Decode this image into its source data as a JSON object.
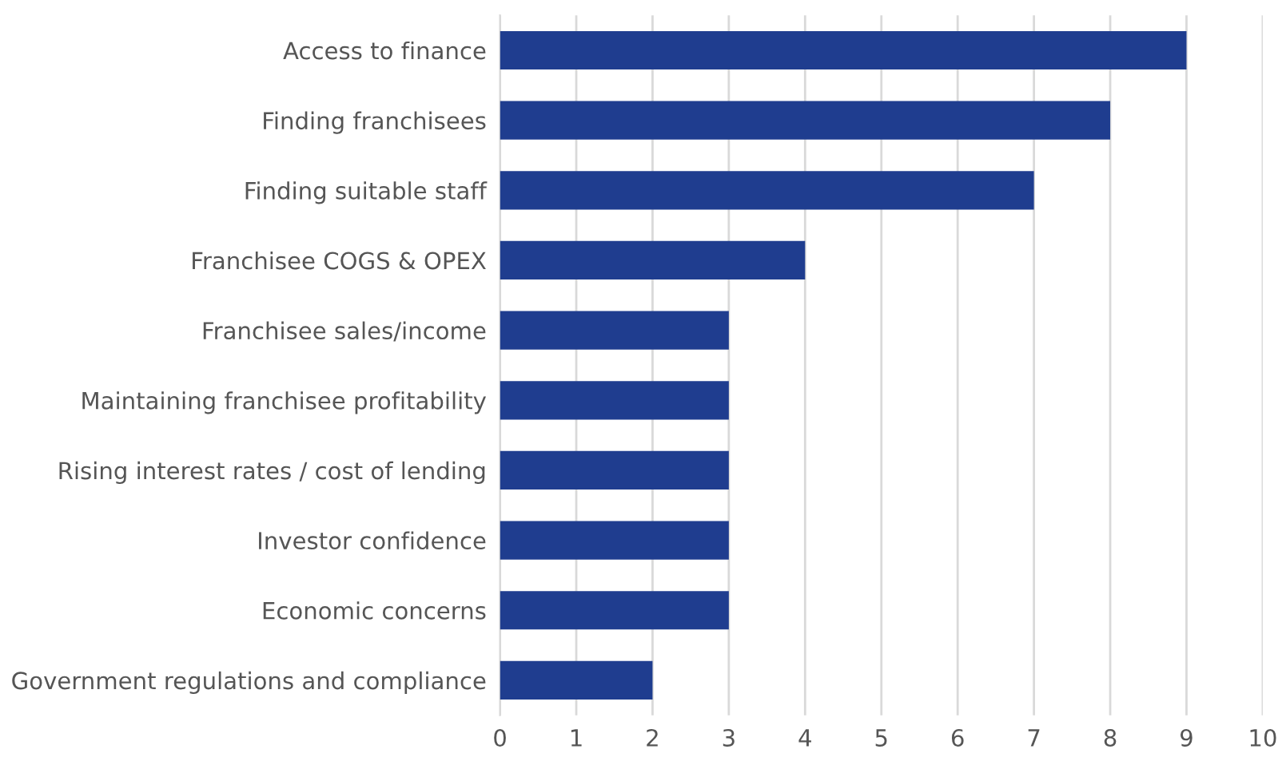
{
  "chart_data": {
    "type": "bar",
    "orientation": "horizontal",
    "categories": [
      "Access to finance",
      "Finding franchisees",
      "Finding suitable staff",
      "Franchisee COGS & OPEX",
      "Franchisee sales/income",
      "Maintaining franchisee profitability",
      "Rising interest rates / cost of lending",
      "Investor confidence",
      "Economic concerns",
      "Government regulations and compliance"
    ],
    "values": [
      9,
      8,
      7,
      4,
      3,
      3,
      3,
      3,
      3,
      2
    ],
    "color": "#1f3d8f",
    "xlim": [
      0,
      10
    ],
    "xticks": [
      0,
      1,
      2,
      3,
      4,
      5,
      6,
      7,
      8,
      9,
      10
    ],
    "grid": "x"
  }
}
